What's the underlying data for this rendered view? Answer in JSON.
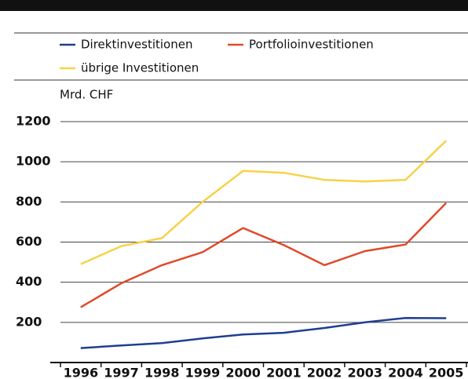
{
  "chart_data": {
    "type": "line",
    "y_label": "Mrd. CHF",
    "categories": [
      "1996",
      "1997",
      "1998",
      "1999",
      "2000",
      "2001",
      "2002",
      "2003",
      "2004",
      "2005"
    ],
    "series": [
      {
        "name": "Direktinvestitionen",
        "color": "#1f3f8f",
        "values": [
          72,
          85,
          97,
          120,
          140,
          148,
          172,
          200,
          222,
          221
        ]
      },
      {
        "name": "Portfolioinvestitionen",
        "color": "#e04a2a",
        "values": [
          275,
          395,
          485,
          550,
          670,
          585,
          485,
          555,
          588,
          795
        ]
      },
      {
        "name": "übrige Investitionen",
        "color": "#f7d24a",
        "values": [
          490,
          580,
          620,
          800,
          955,
          945,
          910,
          902,
          910,
          1105
        ]
      }
    ],
    "ylim": [
      0,
      1200
    ],
    "yticks": [
      200,
      400,
      600,
      800,
      1000,
      1200
    ],
    "grid": true
  }
}
